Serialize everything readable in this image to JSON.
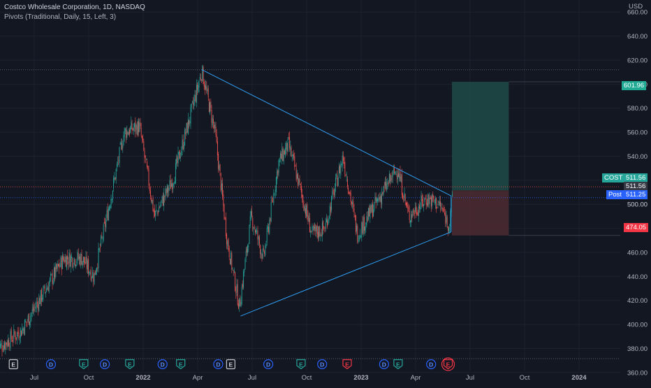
{
  "header": {
    "title": "Costco Wholesale Corporation, 1D, NASDAQ",
    "indicator": "Pivots (Traditional, Daily, 15, Left, 3)"
  },
  "colors": {
    "background": "#131722",
    "grid": "#1e222d",
    "axis_text": "#b2b5be",
    "candle_up": "#26a69a",
    "candle_down": "#ef5350",
    "trendline": "#2f9ff3",
    "profit_zone": "#1f4a47",
    "loss_zone": "#4a2a31",
    "cost_tag": "#26a69a",
    "stop_tag": "#f23645",
    "target_tag": "#22ab94",
    "post_tag": "#2962ff"
  },
  "chart_data": {
    "type": "candlestick",
    "currency": "USD",
    "y_range": [
      350,
      670
    ],
    "y_ticks": [
      "360.00",
      "380.00",
      "400.00",
      "420.00",
      "440.00",
      "460.00",
      "480.00",
      "500.00",
      "520.00",
      "540.00",
      "560.00",
      "580.00",
      "600.00",
      "620.00",
      "640.00",
      "660.00"
    ],
    "x_ticks": [
      "Jul",
      "Oct",
      "2022",
      "Apr",
      "Jul",
      "Oct",
      "2023",
      "Apr",
      "Jul",
      "Oct",
      "2024"
    ],
    "x_ticks_bold": [
      "2022",
      "2023",
      "2024"
    ],
    "price_path": [
      {
        "date": "2021-05-01",
        "price": 380
      },
      {
        "date": "2021-06-10",
        "price": 395
      },
      {
        "date": "2021-07-15",
        "price": 425
      },
      {
        "date": "2021-08-20",
        "price": 455
      },
      {
        "date": "2021-09-20",
        "price": 455
      },
      {
        "date": "2021-10-10",
        "price": 440
      },
      {
        "date": "2021-11-01",
        "price": 490
      },
      {
        "date": "2021-11-30",
        "price": 560
      },
      {
        "date": "2021-12-25",
        "price": 565
      },
      {
        "date": "2022-01-20",
        "price": 490
      },
      {
        "date": "2022-02-20",
        "price": 520
      },
      {
        "date": "2022-03-20",
        "price": 575
      },
      {
        "date": "2022-04-08",
        "price": 611
      },
      {
        "date": "2022-04-30",
        "price": 560
      },
      {
        "date": "2022-05-20",
        "price": 470
      },
      {
        "date": "2022-06-10",
        "price": 415
      },
      {
        "date": "2022-06-30",
        "price": 490
      },
      {
        "date": "2022-07-20",
        "price": 455
      },
      {
        "date": "2022-08-15",
        "price": 535
      },
      {
        "date": "2022-09-01",
        "price": 550
      },
      {
        "date": "2022-10-10",
        "price": 475
      },
      {
        "date": "2022-11-01",
        "price": 480
      },
      {
        "date": "2022-12-01",
        "price": 540
      },
      {
        "date": "2022-12-25",
        "price": 475
      },
      {
        "date": "2023-01-25",
        "price": 500
      },
      {
        "date": "2023-03-01",
        "price": 530
      },
      {
        "date": "2023-03-20",
        "price": 490
      },
      {
        "date": "2023-04-20",
        "price": 505
      },
      {
        "date": "2023-05-10",
        "price": 500
      },
      {
        "date": "2023-05-28",
        "price": 482
      },
      {
        "date": "2023-06-02",
        "price": 512
      }
    ],
    "triangle": [
      {
        "date": "2022-04-08",
        "price": 612
      },
      {
        "date": "2022-06-12",
        "price": 407
      },
      {
        "date": "2023-05-30",
        "price": 477
      }
    ],
    "position": {
      "entry": 511.56,
      "target": 601.96,
      "stop": 474.05,
      "start": "2023-06-01",
      "end": "2023-09-05"
    },
    "levels": {
      "top_dotted": 612,
      "bottom_dotted": 371.5,
      "entry_dotted": 514.5,
      "post_dotted": 505.5
    },
    "price_labels": {
      "cost_name": "COST",
      "cost_value": "511.56",
      "cost_value2": "511.56",
      "post_name": "Post",
      "post_value": "511.25",
      "target": "601.96",
      "stop": "474.05",
      "partial_tick": "500.00"
    },
    "events": [
      {
        "type": "E",
        "style": "plain",
        "date": "2021-05-27"
      },
      {
        "type": "D",
        "style": "dividend",
        "date": "2021-07-29"
      },
      {
        "type": "E",
        "style": "earn-green",
        "date": "2021-09-23"
      },
      {
        "type": "D",
        "style": "dividend",
        "date": "2021-10-28"
      },
      {
        "type": "E",
        "style": "earn-green",
        "date": "2021-12-09"
      },
      {
        "type": "D",
        "style": "dividend",
        "date": "2022-02-03"
      },
      {
        "type": "E",
        "style": "earn-green",
        "date": "2022-03-03"
      },
      {
        "type": "D",
        "style": "dividend",
        "date": "2022-05-05"
      },
      {
        "type": "E",
        "style": "plain",
        "date": "2022-05-26"
      },
      {
        "type": "D",
        "style": "dividend",
        "date": "2022-07-28"
      },
      {
        "type": "E",
        "style": "earn-green",
        "date": "2022-09-22"
      },
      {
        "type": "D",
        "style": "dividend",
        "date": "2022-10-27"
      },
      {
        "type": "E",
        "style": "earn-red",
        "date": "2022-12-08"
      },
      {
        "type": "D",
        "style": "dividend",
        "date": "2023-02-09"
      },
      {
        "type": "E",
        "style": "earn-green",
        "date": "2023-03-02"
      },
      {
        "type": "D",
        "style": "dividend",
        "date": "2023-04-27"
      },
      {
        "type": "E",
        "style": "earn-red-selected",
        "date": "2023-05-25"
      }
    ]
  }
}
